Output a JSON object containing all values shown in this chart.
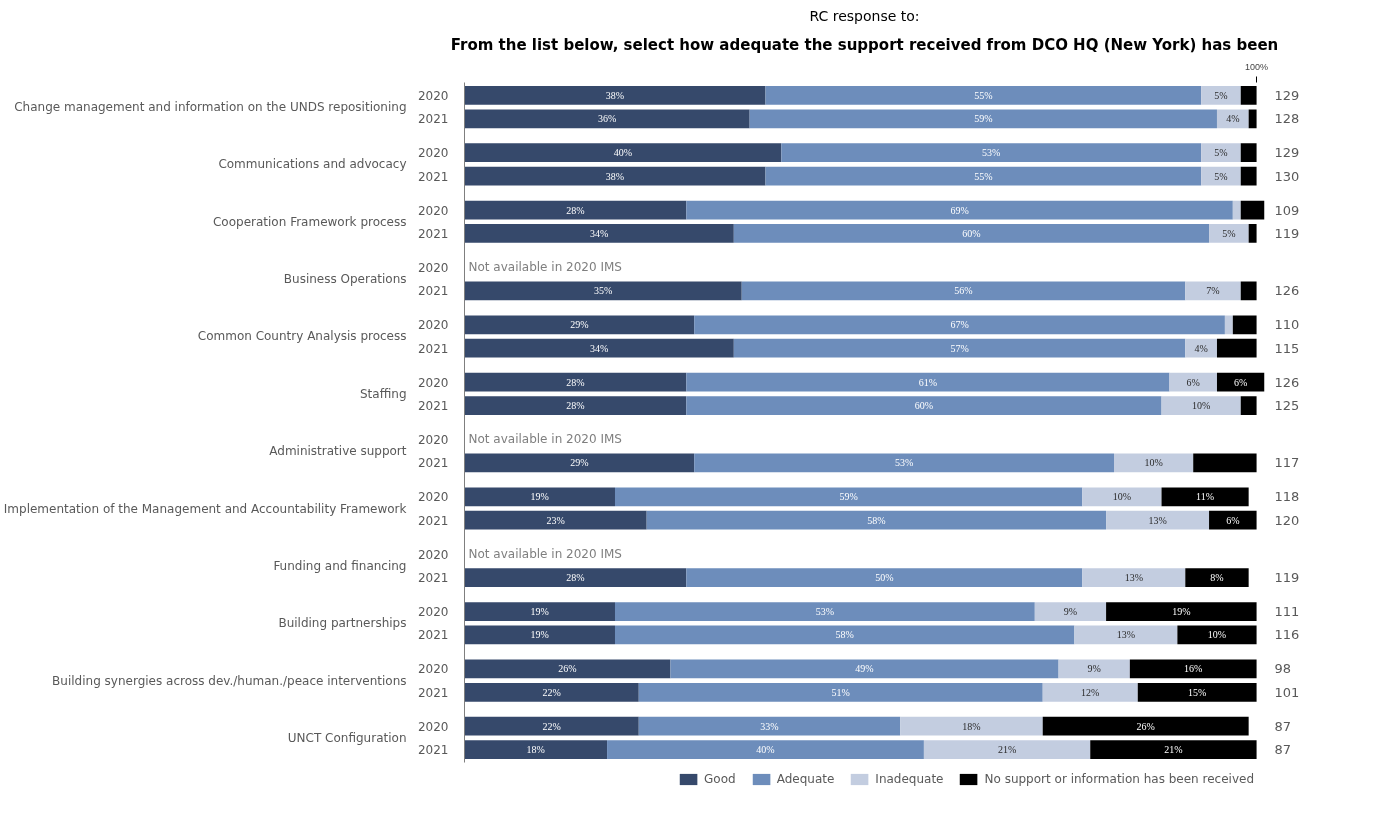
{
  "chart_data": {
    "type": "bar",
    "orientation": "horizontal",
    "stacked": true,
    "title": "RC response to:",
    "subtitle": "From the list below, select how adequate the support received from DCO HQ (New York) has been",
    "categories": [
      "2020",
      "2021",
      "2020",
      "2021",
      "2020",
      "2021",
      "2020",
      "2021",
      "2020",
      "2021",
      "2020",
      "2021",
      "2020",
      "2021",
      "2020",
      "2021",
      "2020",
      "2021",
      "2020",
      "2021",
      "2020",
      "2021",
      "2020",
      "2021"
    ],
    "xlim": [
      0,
      101
    ],
    "xticks": [
      {
        "value": 100,
        "label": "100%"
      }
    ],
    "series": [
      {
        "name": "Good",
        "color": "#36496b",
        "values": [
          38,
          36,
          40,
          38,
          28,
          34,
          null,
          35,
          29,
          34,
          28,
          28,
          null,
          29,
          19,
          23,
          null,
          28,
          19,
          19,
          26,
          22,
          22,
          18
        ],
        "value_labels": [
          "38%",
          "36%",
          "40%",
          "38%",
          "28%",
          "34%",
          null,
          "35%",
          "29%",
          "34%",
          "28%",
          "28%",
          null,
          "29%",
          "19%",
          "23%",
          null,
          "28%",
          "19%",
          "19%",
          "26%",
          "22%",
          "22%",
          "18%"
        ]
      },
      {
        "name": "Adequate",
        "color": "#6d8dbb",
        "values": [
          55,
          59,
          53,
          55,
          69,
          60,
          null,
          56,
          67,
          57,
          61,
          60,
          null,
          53,
          59,
          58,
          null,
          50,
          53,
          58,
          49,
          51,
          33,
          40
        ],
        "value_labels": [
          "55%",
          "59%",
          "53%",
          "55%",
          "69%",
          "60%",
          null,
          "56%",
          "67%",
          "57%",
          "61%",
          "60%",
          null,
          "53%",
          "59%",
          "58%",
          null,
          "50%",
          "53%",
          "58%",
          "49%",
          "51%",
          "33%",
          "40%"
        ]
      },
      {
        "name": "Inadequate",
        "color": "#c3cde0",
        "values": [
          5,
          4,
          5,
          5,
          1,
          5,
          null,
          7,
          1,
          4,
          6,
          10,
          null,
          10,
          10,
          13,
          null,
          13,
          9,
          13,
          9,
          12,
          18,
          21
        ],
        "value_labels": [
          "5%",
          "4%",
          "5%",
          "5%",
          null,
          "5%",
          null,
          "7%",
          null,
          "4%",
          "6%",
          "10%",
          null,
          "10%",
          "10%",
          "13%",
          null,
          "13%",
          "9%",
          "13%",
          "9%",
          "12%",
          "18%",
          "21%"
        ]
      },
      {
        "name": "No support or information has been received",
        "color": "#000000",
        "values": [
          2,
          1,
          2,
          2,
          3,
          1,
          null,
          2,
          3,
          5,
          6,
          2,
          null,
          8,
          11,
          6,
          null,
          8,
          19,
          10,
          16,
          15,
          26,
          21
        ],
        "value_labels": [
          null,
          null,
          null,
          null,
          null,
          null,
          null,
          null,
          null,
          null,
          "6%",
          null,
          null,
          null,
          "11%",
          "6%",
          null,
          "8%",
          "19%",
          "10%",
          "16%",
          "15%",
          "26%",
          "21%"
        ]
      }
    ],
    "legend": "bottom",
    "annotations": [
      "Change management and information on the UNDS repositioning",
      "Communications and advocacy",
      "Cooperation Framework process",
      "Business Operations",
      "Common Country Analysis process",
      "Staffing",
      "Administrative support",
      "Implementation of the Management and Accountability Framework",
      "Funding and financing",
      "Building partnerships",
      "Building synergies across dev./human./peace interventions",
      "UNCT Configuration",
      "Not available in 2020 IMS",
      "Not available in 2020 IMS",
      "Not available in 2020 IMS",
      "129",
      "128",
      "129",
      "130",
      "109",
      "119",
      "126",
      "110",
      "115",
      "126",
      "125",
      "117",
      "118",
      "120",
      "119",
      "111",
      "116",
      "98",
      "101",
      "87",
      "87"
    ]
  }
}
